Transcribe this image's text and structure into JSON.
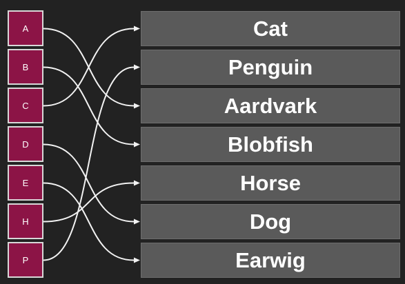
{
  "keys": [
    "A",
    "B",
    "C",
    "D",
    "E",
    "H",
    "P"
  ],
  "items": [
    "Cat",
    "Penguin",
    "Aardvark",
    "Blobfish",
    "Horse",
    "Dog",
    "Earwig"
  ],
  "connections": [
    {
      "from": "A",
      "to": "Aardvark"
    },
    {
      "from": "B",
      "to": "Blobfish"
    },
    {
      "from": "C",
      "to": "Cat"
    },
    {
      "from": "D",
      "to": "Dog"
    },
    {
      "from": "E",
      "to": "Earwig"
    },
    {
      "from": "H",
      "to": "Horse"
    },
    {
      "from": "P",
      "to": "Penguin"
    }
  ],
  "colors": {
    "background": "#222222",
    "key_fill": "#8c1446",
    "key_border": "#d8d8d8",
    "item_fill": "#5a5a5a",
    "connector": "#f2f2f2"
  }
}
